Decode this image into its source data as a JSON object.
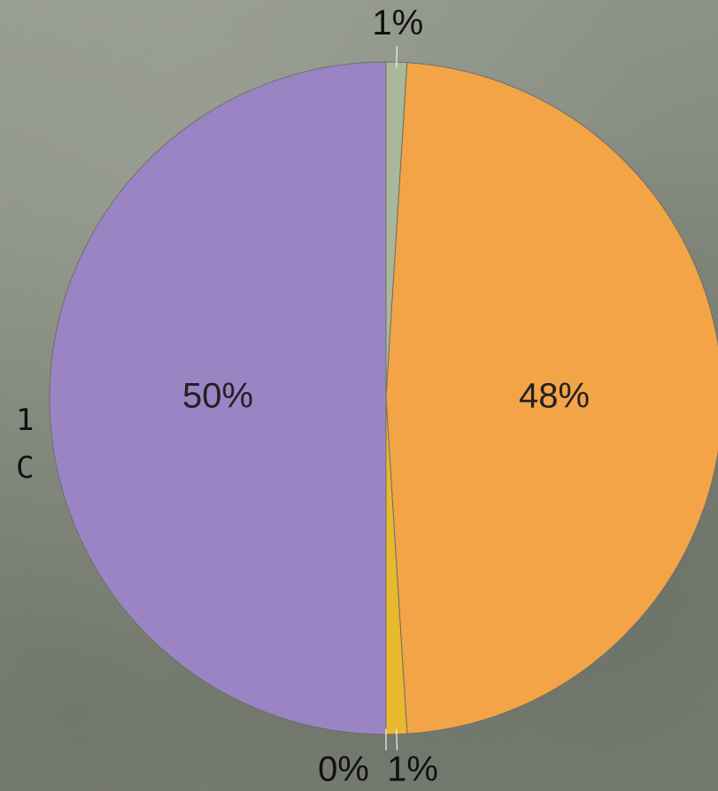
{
  "chart_data": {
    "type": "pie",
    "title": "",
    "start_angle_deg": 0,
    "direction": "clockwise",
    "slices": [
      {
        "value": 1,
        "label": "1%",
        "color": "#a9b79a",
        "label_position": "outside"
      },
      {
        "value": 48,
        "label": "48%",
        "color": "#f2a447",
        "label_position": "inside"
      },
      {
        "value": 1,
        "label": "1%",
        "color": "#e8b92e",
        "label_position": "outside"
      },
      {
        "value": 0,
        "label": "0%",
        "color": "#e0dccc",
        "label_position": "outside"
      },
      {
        "value": 50,
        "label": "50%",
        "color": "#9b84c4",
        "label_position": "inside"
      }
    ],
    "edge_text": [
      "1",
      "C"
    ]
  }
}
